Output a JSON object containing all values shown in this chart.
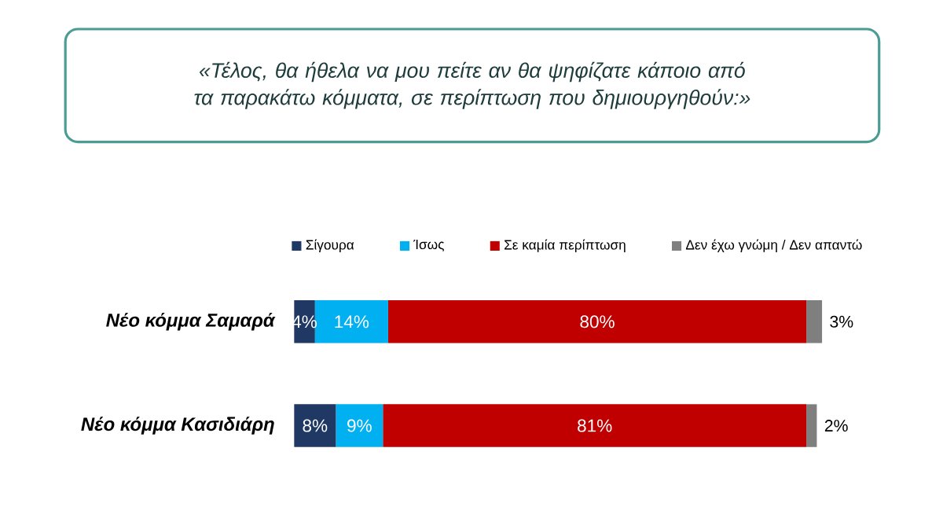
{
  "chart_data": {
    "type": "bar",
    "orientation": "horizontal",
    "stacked": true,
    "title": "«Τέλος, θα ήθελα να μου πείτε αν θα ψηφίζατε κάποιο από τα παρακάτω κόμματα, σε περίπτωση που δημιουργηθούν:»",
    "categories": [
      "Νέο κόμμα Σαμαρά",
      "Νέο κόμμα Κασιδιάρη"
    ],
    "series": [
      {
        "name": "Σίγουρα",
        "color": "#1f3864",
        "values": [
          4,
          8
        ],
        "value_labels": [
          "4%",
          "8%"
        ]
      },
      {
        "name": "Ίσως",
        "color": "#00b0f0",
        "values": [
          14,
          9
        ],
        "value_labels": [
          "14%",
          "9%"
        ]
      },
      {
        "name": "Σε καμία περίπτωση",
        "color": "#c00000",
        "values": [
          80,
          81
        ],
        "value_labels": [
          "80%",
          "81%"
        ]
      },
      {
        "name": "Δεν έχω γνώμη / Δεν απαντώ",
        "color": "#7f7f7f",
        "values": [
          3,
          2
        ],
        "value_labels": [
          "3%",
          "2%"
        ]
      }
    ],
    "legend": "top"
  }
}
